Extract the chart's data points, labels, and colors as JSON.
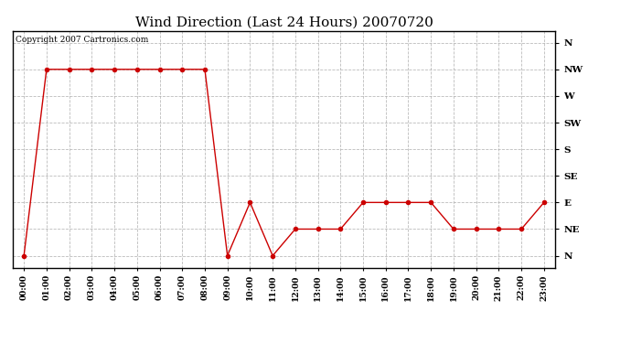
{
  "title": "Wind Direction (Last 24 Hours) 20070720",
  "copyright": "Copyright 2007 Cartronics.com",
  "x_labels": [
    "00:00",
    "01:00",
    "02:00",
    "03:00",
    "04:00",
    "05:00",
    "06:00",
    "07:00",
    "08:00",
    "09:00",
    "10:00",
    "11:00",
    "12:00",
    "13:00",
    "14:00",
    "15:00",
    "16:00",
    "17:00",
    "18:00",
    "19:00",
    "20:00",
    "21:00",
    "22:00",
    "23:00"
  ],
  "y_values": [
    0,
    315,
    315,
    315,
    315,
    315,
    315,
    315,
    315,
    0,
    90,
    0,
    45,
    45,
    45,
    90,
    90,
    90,
    90,
    45,
    45,
    45,
    45,
    90
  ],
  "y_ticks": [
    0,
    45,
    90,
    135,
    180,
    225,
    270,
    315,
    360
  ],
  "y_tick_labels": [
    "N",
    "NE",
    "E",
    "SE",
    "S",
    "SW",
    "W",
    "NW",
    "N"
  ],
  "line_color": "#cc0000",
  "marker": "o",
  "marker_size": 3,
  "marker_color": "#cc0000",
  "background_color": "#ffffff",
  "grid_color": "#aaaaaa",
  "title_fontsize": 11,
  "copyright_fontsize": 6.5,
  "tick_fontsize": 7.5,
  "x_tick_fontsize": 6.5
}
